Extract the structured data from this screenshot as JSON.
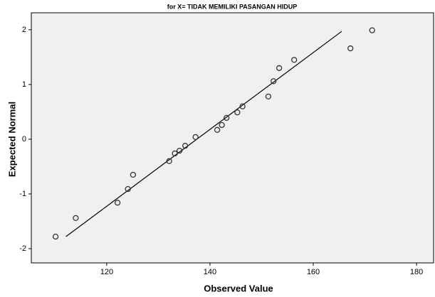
{
  "chart_data": {
    "type": "scatter",
    "title": "for X= TIDAK MEMILIKI PASANGAN HIDUP",
    "x_label": "Observed Value",
    "y_label": "Expected Normal",
    "x": [
      110.1,
      114,
      122.1,
      124.1,
      125.1,
      132.1,
      133.2,
      134.1,
      135.2,
      137.2,
      141.4,
      142.3,
      143.2,
      145.3,
      146.3,
      151.3,
      152.3,
      153.4,
      156.3,
      167.2,
      171.4
    ],
    "values": [
      -1.78,
      -1.44,
      -1.16,
      -0.91,
      -0.65,
      -0.4,
      -0.26,
      -0.21,
      -0.12,
      0.04,
      0.17,
      0.26,
      0.39,
      0.49,
      0.6,
      0.78,
      1.06,
      1.3,
      1.45,
      1.66,
      1.99
    ],
    "color": "#333333",
    "reference_line": {
      "x": [
        112.1,
        165.5
      ],
      "values": [
        -1.78,
        1.97
      ],
      "color": "#000000"
    },
    "xlim": [
      105.4,
      183.3
    ],
    "xticks": [
      120,
      140,
      160,
      180
    ],
    "ylim": [
      -2.26,
      2.31
    ],
    "yticks": [
      -2,
      -1,
      0,
      1,
      2
    ]
  }
}
